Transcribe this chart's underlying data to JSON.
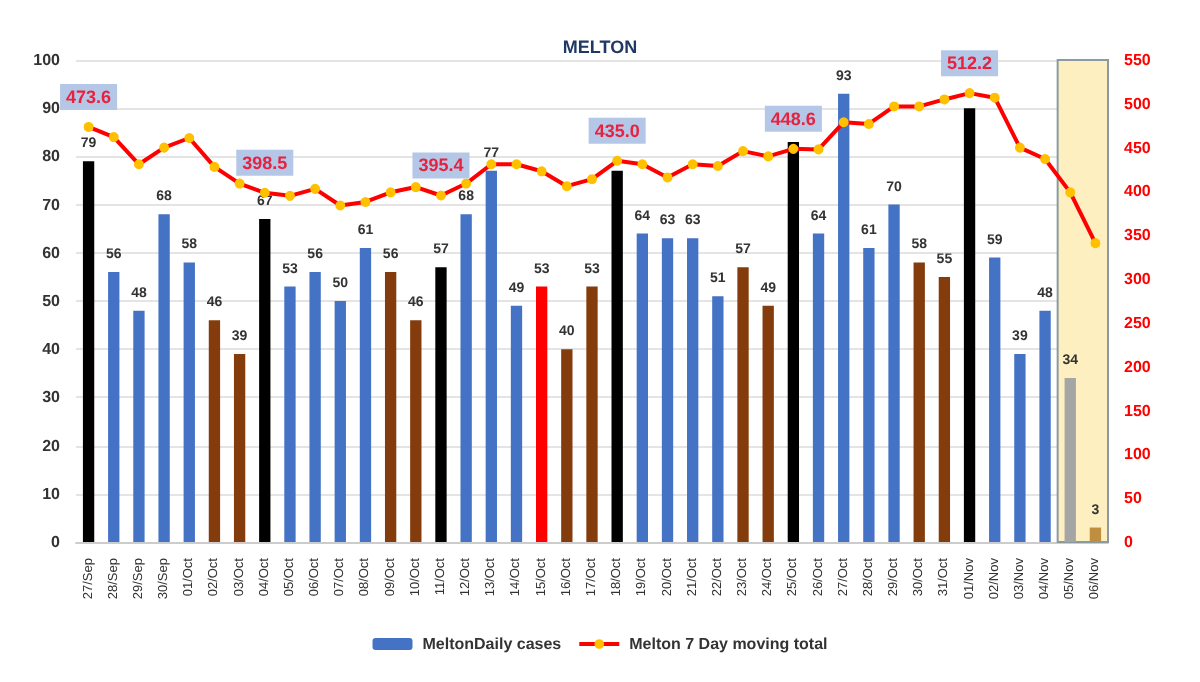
{
  "chart_data": {
    "type": "bar",
    "title": "MELTON",
    "categories": [
      "27/Sep",
      "28/Sep",
      "29/Sep",
      "30/Sep",
      "01/Oct",
      "02/Oct",
      "03/Oct",
      "04/Oct",
      "05/Oct",
      "06/Oct",
      "07/Oct",
      "08/Oct",
      "09/Oct",
      "10/Oct",
      "11/Oct",
      "12/Oct",
      "13/Oct",
      "14/Oct",
      "15/Oct",
      "16/Oct",
      "17/Oct",
      "18/Oct",
      "19/Oct",
      "20/Oct",
      "21/Oct",
      "22/Oct",
      "23/Oct",
      "24/Oct",
      "25/Oct",
      "26/Oct",
      "27/Oct",
      "28/Oct",
      "29/Oct",
      "30/Oct",
      "31/Oct",
      "01/Nov",
      "02/Nov",
      "03/Nov",
      "04/Nov",
      "05/Nov",
      "06/Nov"
    ],
    "series": [
      {
        "name": "MeltonDaily cases",
        "color": "#4472c4",
        "colors": [
          "#000000",
          "#4472c4",
          "#4472c4",
          "#4472c4",
          "#4472c4",
          "#843c0c",
          "#843c0c",
          "#000000",
          "#4472c4",
          "#4472c4",
          "#4472c4",
          "#4472c4",
          "#843c0c",
          "#843c0c",
          "#000000",
          "#4472c4",
          "#4472c4",
          "#4472c4",
          "#ff0000",
          "#843c0c",
          "#843c0c",
          "#000000",
          "#4472c4",
          "#4472c4",
          "#4472c4",
          "#4472c4",
          "#843c0c",
          "#843c0c",
          "#000000",
          "#4472c4",
          "#4472c4",
          "#4472c4",
          "#4472c4",
          "#843c0c",
          "#843c0c",
          "#000000",
          "#4472c4",
          "#4472c4",
          "#4472c4",
          "#a5a5a5",
          "#bf8f3f"
        ],
        "values": [
          79,
          56,
          48,
          68,
          58,
          46,
          39,
          67,
          53,
          56,
          50,
          61,
          56,
          46,
          57,
          68,
          77,
          49,
          53,
          40,
          53,
          77,
          64,
          63,
          63,
          51,
          57,
          49,
          83,
          64,
          93,
          61,
          70,
          58,
          55,
          90,
          59,
          39,
          48,
          34,
          3
        ],
        "value_labels": [
          "79",
          "56",
          "48",
          "68",
          "58",
          "46",
          "39",
          "67",
          "53",
          "56",
          "50",
          "61",
          "56",
          "46",
          "57",
          "68",
          "77",
          "49",
          "53",
          "40",
          "53",
          null,
          "64",
          "63",
          "63",
          "51",
          "57",
          "49",
          null,
          "64",
          "93",
          "61",
          "70",
          "58",
          "55",
          null,
          "59",
          "39",
          "48",
          "34",
          "3"
        ]
      },
      {
        "name": "Melton 7 Day moving total",
        "type": "line",
        "axis": "y2",
        "color": "#ff0000",
        "marker": "circle",
        "values": [
          473.6,
          462,
          431,
          450,
          461,
          428,
          409,
          398.5,
          395,
          403,
          384,
          388,
          399,
          405,
          395.4,
          409,
          431,
          431,
          423,
          406,
          414,
          435.0,
          431,
          416,
          431,
          429,
          446,
          440,
          448.6,
          448,
          479,
          477,
          497,
          497,
          505,
          512.2,
          507,
          450,
          437,
          399,
          341
        ],
        "value_labels": [
          "473.6",
          null,
          null,
          null,
          null,
          null,
          null,
          "398.5",
          null,
          null,
          null,
          null,
          null,
          null,
          "395.4",
          null,
          null,
          null,
          null,
          null,
          null,
          "435.0",
          null,
          null,
          null,
          null,
          null,
          null,
          "448.6",
          null,
          null,
          null,
          null,
          null,
          null,
          "512.2",
          null,
          null,
          null,
          null,
          null
        ]
      }
    ],
    "ylim": [
      0,
      100
    ],
    "yticks": [
      0,
      10,
      20,
      30,
      40,
      50,
      60,
      70,
      80,
      90,
      100
    ],
    "y2lim": [
      0,
      550
    ],
    "y2ticks": [
      0,
      50,
      100,
      150,
      200,
      250,
      300,
      350,
      400,
      450,
      500,
      550
    ],
    "bands": [
      {
        "axis": "x",
        "from": "05/Nov",
        "to": "06/Nov",
        "color": "#fdefc0"
      }
    ],
    "grid": "y",
    "legend": "bottom"
  }
}
